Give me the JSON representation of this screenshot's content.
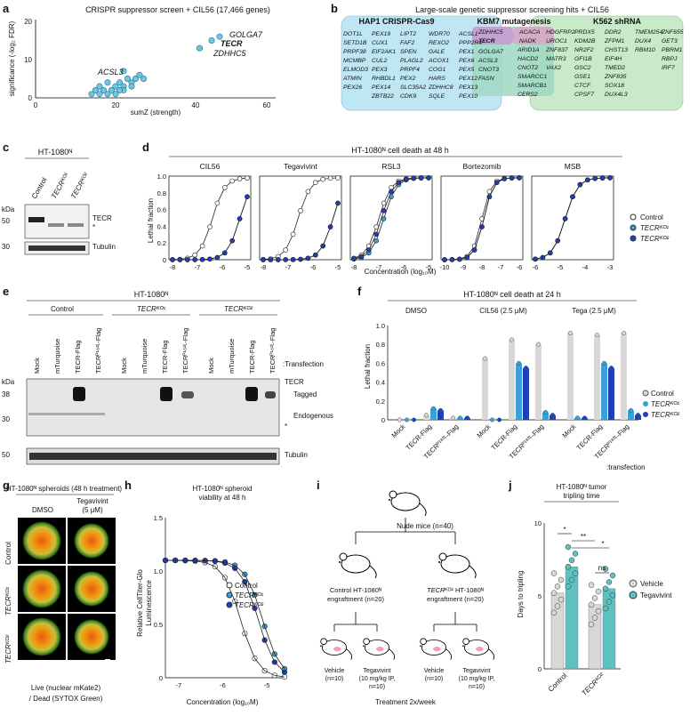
{
  "panel_letters": [
    "a",
    "b",
    "c",
    "d",
    "e",
    "f",
    "g",
    "h",
    "i",
    "j"
  ],
  "a": {
    "title": "CRISPR suppressor screen + CIL56 (17,466 genes)",
    "xlabel": "sumZ (strength)",
    "ylabel": "significance (-log₂ FDR)",
    "labels": [
      "GOLGA7",
      "TECR",
      "ZDHHC5",
      "ACSL3"
    ]
  },
  "b": {
    "title": "Large-scale genetic suppressor screening hits + CIL56",
    "sets": [
      "HAP1 CRISPR-Cas9",
      "KBM7 mutagenesis",
      "K562 shRNA"
    ],
    "hap1_cols": [
      [
        "DOT1L",
        "SETD1B",
        "PRPF38",
        "MCMBP",
        "ELMOD3",
        "ATMIN",
        "PEX26"
      ],
      [
        "PEX19",
        "CUX1",
        "EIF2AK1",
        "CUL2",
        "PEX3",
        "RHBDL1",
        "PEX14",
        "ZBTB22"
      ],
      [
        "LIPT2",
        "FAF2",
        "SPEN",
        "PLAGL2",
        "PRPF4",
        "PEX2",
        "SLC35A2",
        "CDK9"
      ],
      [
        "WDR70",
        "REXO2",
        "GALE",
        "ACOX1",
        "COG1",
        "HARS",
        "ZDHHC8",
        "SQLE"
      ],
      [
        "ACSL1",
        "PPP2R4",
        "PEX1",
        "PEX6",
        "PEX5",
        "PEX12",
        "PEX13",
        "PEX10"
      ]
    ],
    "hap1_kbm7": [
      "ZDHHC5",
      "TECR"
    ],
    "all_three": [
      "GOLGA7",
      "ACSL3",
      "CNOT3",
      "FASN"
    ],
    "kbm7_only": [
      "ACACA",
      "NADK"
    ],
    "kbm7_k562": [],
    "k562_cols": [
      [
        "ARID1A",
        "HACD2",
        "CNOT2",
        "SMARCC1",
        "SMARCB1",
        "CERS2"
      ],
      [
        "HDGFRP2",
        "UROC1",
        "ZNF837",
        "MATR3",
        "VAX2"
      ],
      [
        "PRDX5",
        "KDM2B",
        "NR2F2",
        "GFI1B",
        "GSC2",
        "GSE1",
        "CTCF",
        "CPSF7"
      ],
      [
        "DDR2",
        "ZFPM1",
        "CHST13",
        "EIF4H",
        "TMED2",
        "ZNF835",
        "SOX18",
        "DUX4L3"
      ],
      [
        "TMEM254",
        "DUX4",
        "RBM10"
      ],
      [
        "ZNF655",
        "GET3",
        "PBRM1",
        "RBPJ",
        "IRF7"
      ]
    ]
  },
  "c": {
    "title": "HT-1080ᴺ",
    "lanes": [
      "Control",
      "TECRᴷᴼ¹",
      "TECRᴷᴼ²"
    ],
    "kda_label": "kDa",
    "markers": [
      "50",
      "30"
    ],
    "bands": [
      "TECR",
      "*",
      "Tubulin"
    ]
  },
  "d": {
    "title": "HT-1080ᴺ cell death at 48 h",
    "ylabel": "Lethal fraction",
    "xlabel": "Concentration (log₁₀M)",
    "legend": [
      "Control",
      "TECRᴷᴼ¹",
      "TECRᴷᴼ²"
    ]
  },
  "e": {
    "title": "HT-1080ᴺ",
    "groups": [
      "Control",
      "TECRᴷᴼ¹",
      "TECRᴷᴼ²"
    ],
    "lanes": [
      "Mock",
      "mTurquoise",
      "TECR-Flag",
      "TECRᴾ¹⁸²ᴸ-Flag"
    ],
    "transfection": ":Transfection",
    "kda_label": "kDa",
    "markers": [
      "38",
      "30",
      "50"
    ],
    "bands": [
      "TECR",
      "Tagged",
      "Endogenous",
      "*",
      "Tubulin"
    ]
  },
  "f": {
    "title": "HT-1080ᴺ cell death at 24 h",
    "groups": [
      "DMSO",
      "CIL56 (2.5 μM)",
      "Tega (2.5 μM)"
    ],
    "ylabel": "Lethal fraction",
    "xcats": [
      "Mock",
      "TECR-Flag",
      "TECRᴾ¹⁸²ᴸ-Flag"
    ],
    "transfection": ":transfection",
    "legend": [
      "Control",
      "TECRᴷᴼ¹",
      "TECRᴷᴼ²"
    ]
  },
  "g": {
    "title": "HT-1080ᴺ spheroids (48 h treatment)",
    "cols": [
      "DMSO",
      "Tegavivint (5 μM)"
    ],
    "rows": [
      "Control",
      "TECRᴷᴼ¹",
      "TECRᴷᴼ²"
    ],
    "caption1": "Live (nuclear mKate2)",
    "caption2": "/ Dead (SYTOX Green)"
  },
  "h": {
    "title": "HT-1080ᴺ spheroid viability at 48 h",
    "ylabel": "Relative CellTiter-Glo Luminescence",
    "xlabel": "Concentration (log₁₀M)",
    "legend": [
      "Control",
      "TECRᴷᴼ¹",
      "TECRᴷᴼ²"
    ]
  },
  "i": {
    "top": "Nude mice (n=40)",
    "left_graft": "Control HT-1080ᴺ engraftment (n=20)",
    "right_graft": "TECRᴷᴼ² HT-1080ᴺ engraftment (n=20)",
    "arms": [
      "Vehicle (n=10)",
      "Tegavivint (10 mg/kg IP, n=10)",
      "Vehicle (n=10)",
      "Tegavivint (10 mg/kg IP, n=10)"
    ],
    "schedule": "Treatment 2x/week"
  },
  "j": {
    "title": "HT-1080ᴺ tumor tripling time",
    "ylabel": "Days to tripling",
    "xcats": [
      "Control",
      "TECRᴷᴼ²"
    ],
    "legend": [
      "Vehicle",
      "Tegavivint"
    ],
    "sig": [
      "*",
      "**",
      "*",
      "ns"
    ]
  },
  "colors": {
    "control": "#d8d8d8",
    "ko1": "#3aa0d8",
    "ko2": "#1f3fb8",
    "hap1": "#bfe6f3",
    "kbm7": "#d8a7c8",
    "k562": "#c9eac9"
  },
  "chart_data": [
    {
      "type": "scatter",
      "panel": "a",
      "xlim": [
        0,
        60
      ],
      "ylim": [
        0,
        20
      ],
      "points": [
        [
          14,
          1
        ],
        [
          15,
          2
        ],
        [
          16,
          3
        ],
        [
          17,
          2
        ],
        [
          18,
          4
        ],
        [
          19,
          2
        ],
        [
          20,
          3
        ],
        [
          21,
          4
        ],
        [
          22,
          3
        ],
        [
          23,
          5
        ],
        [
          24,
          4
        ],
        [
          25,
          5
        ],
        [
          26,
          6
        ],
        [
          27,
          5
        ],
        [
          24,
          3
        ],
        [
          20,
          1
        ],
        [
          18,
          1
        ],
        [
          22,
          2
        ],
        [
          16,
          1
        ],
        [
          21,
          2
        ],
        [
          41,
          13
        ],
        [
          44,
          15
        ],
        [
          46,
          16
        ],
        [
          22,
          7
        ]
      ]
    },
    {
      "type": "line",
      "panel": "d",
      "subplots": [
        "CIL56",
        "Tegavivint",
        "RSL3",
        "Bortezomib",
        "MSB"
      ],
      "ylim": [
        0,
        1.0
      ]
    },
    {
      "type": "bar",
      "panel": "f",
      "ylim": [
        0,
        1.0
      ]
    },
    {
      "type": "line",
      "panel": "h",
      "ylim": [
        0,
        1.5
      ],
      "xlim": [
        -7.3,
        -4.6
      ]
    },
    {
      "type": "bar",
      "panel": "j",
      "ylim": [
        0,
        10
      ]
    }
  ]
}
